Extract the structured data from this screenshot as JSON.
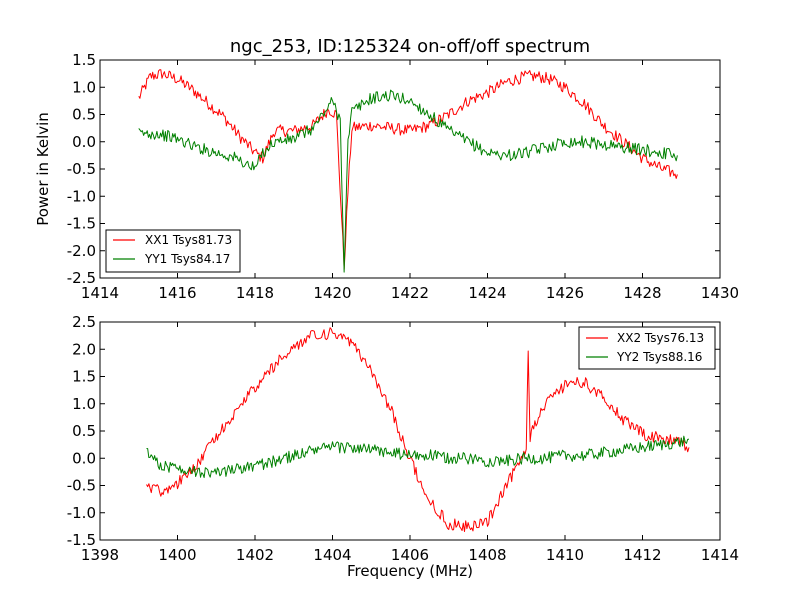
{
  "chart_data": [
    {
      "type": "line",
      "title": "ngc_253, ID:125324 on-off/off spectrum",
      "xlabel": "",
      "ylabel": "Power in Kelvin",
      "xlim": [
        1414,
        1430
      ],
      "ylim": [
        -2.5,
        1.5
      ],
      "xticks": [
        "1414",
        "1416",
        "1418",
        "1420",
        "1422",
        "1424",
        "1426",
        "1428",
        "1430"
      ],
      "yticks": [
        "-2.5",
        "-2.0",
        "-1.5",
        "-1.0",
        "-0.5",
        "0.0",
        "0.5",
        "1.0",
        "1.5"
      ],
      "legend_position": "lower-left",
      "grid": false,
      "series": [
        {
          "name": "XX1 Tsys81.73",
          "color": "#ff0000",
          "x": [
            1415.0,
            1415.3,
            1415.6,
            1416.0,
            1416.4,
            1416.8,
            1417.2,
            1417.6,
            1418.0,
            1418.2,
            1418.5,
            1419.0,
            1419.5,
            1419.9,
            1420.1,
            1420.3,
            1420.4,
            1420.5,
            1421.0,
            1421.5,
            1422.0,
            1422.5,
            1423.0,
            1423.5,
            1424.0,
            1424.5,
            1425.0,
            1425.3,
            1425.6,
            1426.0,
            1426.5,
            1427.0,
            1427.5,
            1428.0,
            1428.5,
            1428.9
          ],
          "y": [
            0.8,
            1.2,
            1.25,
            1.15,
            0.95,
            0.7,
            0.45,
            0.1,
            -0.2,
            -0.3,
            0.2,
            0.2,
            0.3,
            0.6,
            0.5,
            -2.3,
            -0.9,
            0.25,
            0.3,
            0.25,
            0.2,
            0.3,
            0.5,
            0.75,
            0.9,
            1.1,
            1.2,
            1.2,
            1.15,
            1.0,
            0.7,
            0.3,
            0.0,
            -0.3,
            -0.5,
            -0.6
          ]
        },
        {
          "name": "YY1 Tsys84.17",
          "color": "#008000",
          "x": [
            1415.0,
            1415.5,
            1416.0,
            1416.5,
            1417.0,
            1417.5,
            1418.0,
            1418.2,
            1418.5,
            1419.0,
            1419.5,
            1420.0,
            1420.2,
            1420.3,
            1420.4,
            1420.5,
            1421.0,
            1421.5,
            1422.0,
            1422.5,
            1423.0,
            1423.5,
            1424.0,
            1424.5,
            1425.0,
            1425.5,
            1426.0,
            1426.5,
            1427.0,
            1427.5,
            1428.0,
            1428.5,
            1428.9
          ],
          "y": [
            0.15,
            0.15,
            0.05,
            -0.1,
            -0.2,
            -0.3,
            -0.5,
            -0.2,
            0.0,
            0.05,
            0.25,
            0.75,
            0.4,
            -2.3,
            0.0,
            0.55,
            0.8,
            0.85,
            0.75,
            0.5,
            0.2,
            0.0,
            -0.2,
            -0.25,
            -0.2,
            -0.1,
            0.0,
            0.0,
            -0.05,
            -0.1,
            -0.15,
            -0.2,
            -0.25
          ]
        }
      ]
    },
    {
      "type": "line",
      "title": "",
      "xlabel": "Frequency (MHz)",
      "ylabel": "",
      "xlim": [
        1398,
        1414
      ],
      "ylim": [
        -1.5,
        2.5
      ],
      "xticks": [
        "1398",
        "1400",
        "1402",
        "1404",
        "1406",
        "1408",
        "1410",
        "1412",
        "1414"
      ],
      "yticks": [
        "-1.5",
        "-1.0",
        "-0.5",
        "0.0",
        "0.5",
        "1.0",
        "1.5",
        "2.0",
        "2.5"
      ],
      "legend_position": "top-right",
      "grid": false,
      "series": [
        {
          "name": "XX2 Tsys76.13",
          "color": "#ff0000",
          "x": [
            1399.2,
            1399.6,
            1400.0,
            1400.5,
            1401.0,
            1401.5,
            1402.0,
            1402.5,
            1403.0,
            1403.5,
            1404.0,
            1404.5,
            1405.0,
            1405.5,
            1406.0,
            1406.5,
            1407.0,
            1407.5,
            1408.0,
            1408.5,
            1409.0,
            1409.05,
            1409.1,
            1409.5,
            1410.0,
            1410.5,
            1411.0,
            1411.5,
            1412.0,
            1412.5,
            1413.0,
            1413.2
          ],
          "y": [
            -0.5,
            -0.6,
            -0.45,
            -0.1,
            0.4,
            0.85,
            1.3,
            1.7,
            2.05,
            2.25,
            2.3,
            2.1,
            1.6,
            0.9,
            0.0,
            -0.8,
            -1.2,
            -1.25,
            -1.15,
            -0.5,
            0.2,
            2.05,
            0.4,
            1.0,
            1.35,
            1.4,
            1.1,
            0.7,
            0.45,
            0.35,
            0.3,
            0.2
          ]
        },
        {
          "name": "YY2 Tsys88.16",
          "color": "#008000",
          "x": [
            1399.2,
            1399.5,
            1400.0,
            1400.5,
            1401.0,
            1401.5,
            1402.0,
            1402.5,
            1403.0,
            1403.5,
            1404.0,
            1404.5,
            1405.0,
            1405.5,
            1406.0,
            1406.5,
            1407.0,
            1407.5,
            1408.0,
            1408.5,
            1409.0,
            1409.5,
            1410.0,
            1410.5,
            1411.0,
            1411.5,
            1412.0,
            1412.5,
            1413.0,
            1413.2
          ],
          "y": [
            0.1,
            -0.1,
            -0.2,
            -0.25,
            -0.25,
            -0.2,
            -0.15,
            -0.05,
            0.05,
            0.15,
            0.2,
            0.2,
            0.15,
            0.1,
            0.05,
            0.05,
            0.0,
            0.0,
            -0.05,
            -0.05,
            0.0,
            0.0,
            0.05,
            0.05,
            0.1,
            0.15,
            0.2,
            0.25,
            0.3,
            0.35
          ]
        }
      ]
    }
  ]
}
